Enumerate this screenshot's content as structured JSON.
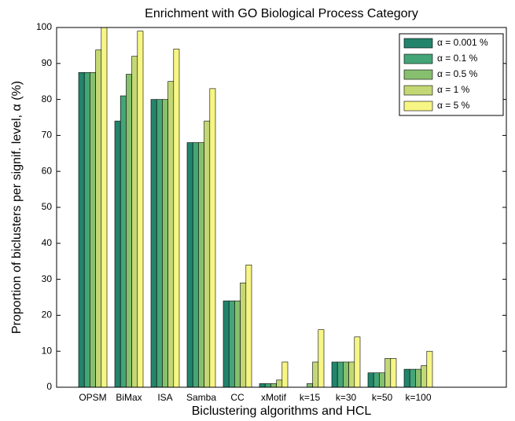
{
  "chart_data": {
    "type": "bar",
    "title": "Enrichment with GO Biological Process Category",
    "x_label": "Biclustering algorithms and HCL",
    "y_label": "Proportion of biclusters per signif. level, α (%)",
    "categories": [
      "OPSM",
      "BiMax",
      "ISA",
      "Samba",
      "CC",
      "xMotif",
      "k=15",
      "k=30",
      "k=50",
      "k=100"
    ],
    "series": [
      {
        "name": "α = 0.001 %",
        "color": "#23846c",
        "values": [
          87.5,
          74,
          80,
          68,
          24,
          1,
          0,
          7,
          4,
          5
        ]
      },
      {
        "name": "α = 0.1 %",
        "color": "#44a577",
        "values": [
          87.5,
          81,
          80,
          68,
          24,
          1,
          0,
          7,
          4,
          5
        ]
      },
      {
        "name": "α = 0.5 %",
        "color": "#86c06f",
        "values": [
          87.5,
          87,
          80,
          68,
          24,
          1,
          1,
          7,
          4,
          5
        ]
      },
      {
        "name": "α = 1 %",
        "color": "#c3d874",
        "values": [
          93.75,
          92,
          85,
          74,
          29,
          2,
          7,
          7,
          8,
          6
        ]
      },
      {
        "name": "α = 5 %",
        "color": "#f7f684",
        "values": [
          100,
          99,
          94,
          83,
          34,
          7,
          16,
          14,
          8,
          10
        ]
      }
    ],
    "ylim": [
      0,
      100
    ],
    "yticks": [
      0,
      10,
      20,
      30,
      40,
      50,
      60,
      70,
      80,
      90,
      100
    ],
    "legend": "upper right"
  }
}
